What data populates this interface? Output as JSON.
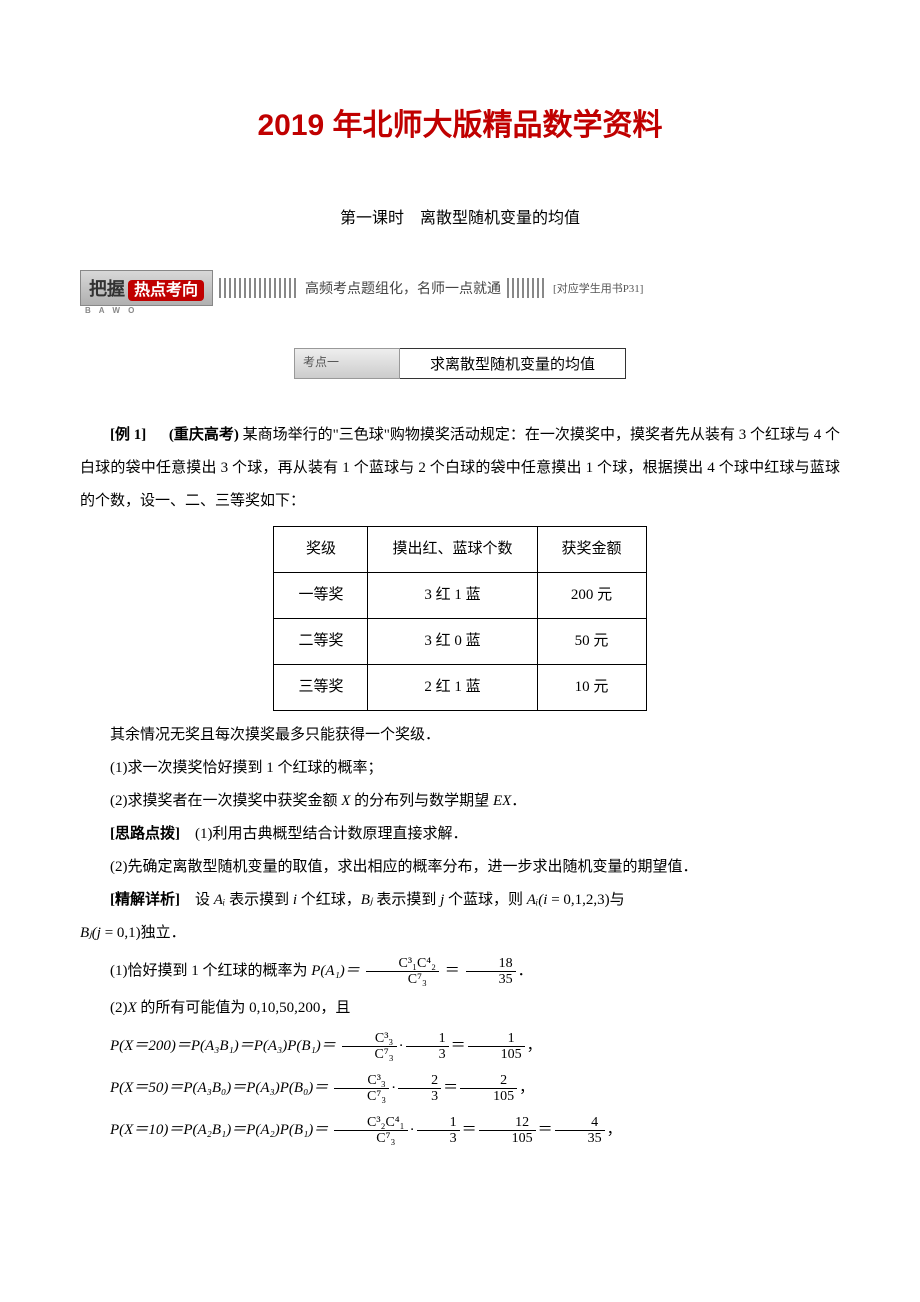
{
  "title": "2019 年北师大版精品数学资料",
  "lesson": "第一课时　离散型随机变量的均值",
  "banner": {
    "grip": "把握",
    "bawo": "B A W O",
    "accent": "热点考向",
    "mid_text": "高频考点题组化，名师一点就通",
    "ref": "[对应学生用书P31]"
  },
  "topic": {
    "tag": "考点一",
    "name": "求离散型随机变量的均值"
  },
  "example": {
    "label": "[例 1]",
    "source": "(重庆高考)",
    "stem1": "某商场举行的\"三色球\"购物摸奖活动规定：在一次摸奖中，摸奖者先从装有 3 个红球与 4 个白球的袋中任意摸出 3 个球，再从装有 1 个蓝球与 2 个白球的袋中任意摸出 1 个球，根据摸出 4 个球中红球与蓝球的个数，设一、二、三等奖如下：",
    "table": {
      "headers": [
        "奖级",
        "摸出红、蓝球个数",
        "获奖金额"
      ],
      "rows": [
        [
          "一等奖",
          "3 红 1 蓝",
          "200 元"
        ],
        [
          "二等奖",
          "3 红 0 蓝",
          "50 元"
        ],
        [
          "三等奖",
          "2 红 1 蓝",
          "10 元"
        ]
      ]
    },
    "stem2": "其余情况无奖且每次摸奖最多只能获得一个奖级．",
    "q1": "(1)求一次摸奖恰好摸到 1 个红球的概率；",
    "q2_a": "(2)求摸奖者在一次摸奖中获奖金额 ",
    "q2_b": " 的分布列与数学期望 ",
    "hint_label": "[思路点拨]",
    "hint1": "　(1)利用古典概型结合计数原理直接求解．",
    "hint2": "(2)先确定离散型随机变量的取值，求出相应的概率分布，进一步求出随机变量的期望值．",
    "sol_label": "[精解详析]",
    "sol_intro_a": "　设 ",
    "sol_intro_b": " 表示摸到 ",
    "sol_intro_c": " 个红球，",
    "sol_intro_d": " 表示摸到 ",
    "sol_intro_e": " 个蓝球，则 ",
    "sol_intro_f": " = 0,1,2,3)与",
    "sol_intro_g": " = 0,1)独立．",
    "p1_a": "(1)恰好摸到 1 个红球的概率为 ",
    "frac1": {
      "num": "C³₁C⁴₂",
      "den": "C⁷₃"
    },
    "frac1b": {
      "num": "18",
      "den": "35"
    },
    "p2_a": "(2)",
    "p2_b": " 的所有可能值为 0,10,50,200，且",
    "line200": {
      "lhs": "P(X＝200)＝P(A₃B₁)＝P(A₃)P(B₁)＝",
      "f1n": "C³₃",
      "f1d": "C⁷₃",
      "mid": "·",
      "f2n": "1",
      "f2d": "3",
      "eq": "＝",
      "f3n": "1",
      "f3d": "105"
    },
    "line50": {
      "lhs": "P(X＝50)＝P(A₃B₀)＝P(A₃)P(B₀)＝",
      "f1n": "C³₃",
      "f1d": "C⁷₃",
      "mid": "·",
      "f2n": "2",
      "f2d": "3",
      "eq": "＝",
      "f3n": "2",
      "f3d": "105"
    },
    "line10": {
      "lhs": "P(X＝10)＝P(A₂B₁)＝P(A₂)P(B₁)＝",
      "f1n": "C³₂C⁴₁",
      "f1d": "C⁷₃",
      "mid": "·",
      "f2n": "1",
      "f2d": "3",
      "eq": "＝",
      "f3n": "12",
      "f3d": "105",
      "eq2": "＝",
      "f4n": "4",
      "f4d": "35"
    }
  },
  "sym": {
    "X": "X",
    "EX": "EX",
    "Ai": "Aᵢ",
    "i": "i",
    "Bj": "Bⱼ",
    "j": "j",
    "Ai2": "Aᵢ(i",
    "Bj2": "Bⱼ(j",
    "PA1": "P(A₁)＝",
    "eq": "＝",
    "dot": "．",
    "comma": "，"
  }
}
